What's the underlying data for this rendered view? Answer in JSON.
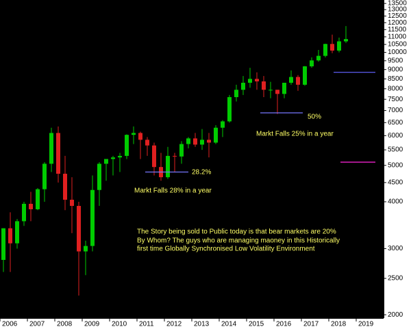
{
  "chart_data": {
    "type": "candlestick",
    "log_scale": true,
    "background": "#000000",
    "up_color": "#00cc00",
    "down_color": "#e02020",
    "categories": [
      "2006",
      null,
      null,
      null,
      "2007",
      null,
      null,
      null,
      "2008",
      null,
      null,
      null,
      "2009",
      null,
      null,
      null,
      "2010",
      null,
      null,
      null,
      "2011",
      null,
      null,
      null,
      "2012",
      null,
      null,
      null,
      "2013",
      null,
      null,
      null,
      "2014",
      null,
      null,
      null,
      "2015",
      null,
      null,
      null,
      "2016",
      null,
      null,
      null,
      "2017",
      null,
      null,
      null,
      "2018",
      null,
      null,
      null,
      "2019",
      null,
      null,
      null
    ],
    "open": [
      2800,
      3400,
      3100,
      3550,
      3950,
      3820,
      4320,
      5050,
      6100,
      4750,
      4050,
      3900,
      2950,
      3050,
      4300,
      5050,
      5200,
      5250,
      5300,
      6030,
      6100,
      5850,
      5650,
      4950,
      4650,
      5300,
      5280,
      5700,
      5900,
      5680,
      5850,
      5750,
      6300,
      6550,
      7600,
      7950,
      8300,
      8500,
      8370,
      7950,
      7950,
      7750,
      8300,
      8600,
      8200,
      9180,
      9520,
      9790,
      10530,
      10110,
      10700,
      null,
      null,
      null,
      null,
      null
    ],
    "high": [
      3400,
      3750,
      3600,
      4000,
      4250,
      4350,
      5100,
      6300,
      6350,
      5300,
      4650,
      4000,
      3150,
      4700,
      5100,
      5200,
      5300,
      5400,
      6050,
      6350,
      6150,
      5950,
      5750,
      5400,
      5600,
      5400,
      5800,
      5950,
      6100,
      6250,
      6100,
      6400,
      6600,
      7700,
      8200,
      8650,
      9100,
      8850,
      8650,
      8350,
      7950,
      8300,
      8950,
      8700,
      9200,
      9700,
      10150,
      10550,
      11150,
      10950,
      11750,
      null,
      null,
      null,
      null,
      null
    ],
    "low": [
      2600,
      2600,
      3000,
      3450,
      3550,
      3800,
      4000,
      4800,
      4500,
      3800,
      3300,
      2250,
      2550,
      2950,
      3900,
      4550,
      4700,
      4800,
      5200,
      5700,
      5200,
      5300,
      4700,
      4550,
      4600,
      4800,
      5050,
      5550,
      5600,
      5500,
      5250,
      5700,
      5950,
      6500,
      7400,
      7700,
      8050,
      7950,
      7600,
      7550,
      6850,
      7550,
      8200,
      7900,
      8150,
      9100,
      9450,
      9700,
      9950,
      10000,
      10600,
      null,
      null,
      null,
      null,
      null
    ],
    "close": [
      3400,
      3100,
      3550,
      3950,
      3820,
      4320,
      5050,
      6100,
      4750,
      4050,
      3900,
      2950,
      3050,
      4300,
      5050,
      5200,
      5250,
      5300,
      6030,
      6100,
      5850,
      5650,
      4950,
      4650,
      5300,
      5280,
      5700,
      5900,
      5680,
      5850,
      5750,
      6300,
      6550,
      7600,
      7950,
      8300,
      8500,
      8370,
      7950,
      7950,
      7750,
      8300,
      8600,
      8200,
      9180,
      9520,
      9790,
      10530,
      10110,
      10700,
      10850,
      null,
      null,
      null,
      null,
      null
    ],
    "ylim": [
      1960,
      13790
    ],
    "yticks": [
      2000,
      2500,
      3000,
      4000,
      4500,
      5000,
      5500,
      6000,
      6500,
      7000,
      7500,
      8000,
      8500,
      9000,
      9500,
      10000,
      10500,
      11000,
      11500,
      12000,
      12500,
      13000,
      13500
    ],
    "reference_lines": [
      {
        "value": 4800,
        "color": "#7777ff"
      },
      {
        "value": 6900,
        "color": "#7777ff"
      },
      {
        "value": 8850,
        "color": "#5555dd"
      },
      {
        "value": 5100,
        "color": "#ee22cc"
      }
    ],
    "annotations": [
      "28.2%",
      "Markt Falls 28% in a year",
      "50%",
      "Markt Falls 25% in a year",
      "The Story being sold to Public today is that bear markets are 20%",
      "By Whom? The guys who are managing maoney in this Historically",
      "first time Globally Synchronised Low Volatility Environment"
    ],
    "annotation_color": "#ffff66"
  }
}
